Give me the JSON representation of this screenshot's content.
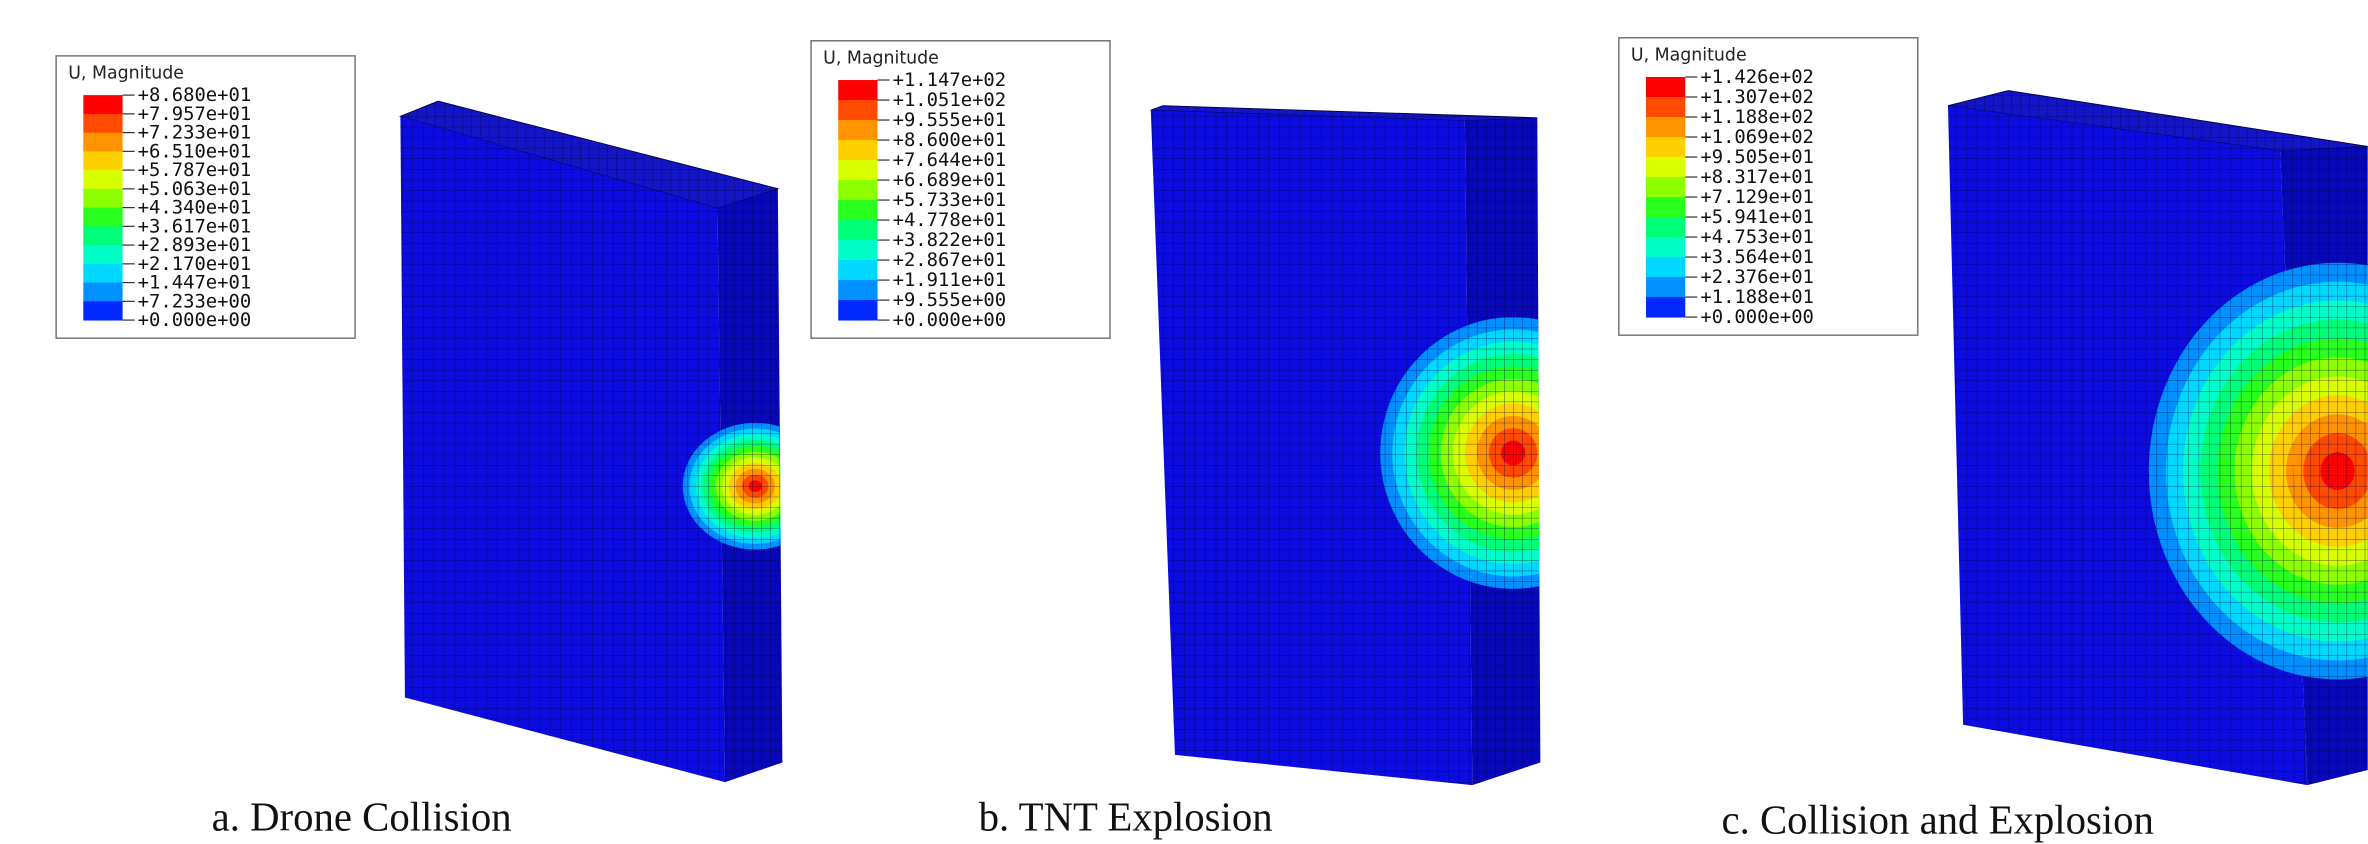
{
  "panels": [
    {
      "legend": {
        "title": "U, Magnitude",
        "labels": [
          "+8.680e+01",
          "+7.957e+01",
          "+7.233e+01",
          "+6.510e+01",
          "+5.787e+01",
          "+5.063e+01",
          "+4.340e+01",
          "+3.617e+01",
          "+2.893e+01",
          "+2.170e+01",
          "+1.447e+01",
          "+7.233e+00",
          "+0.000e+00"
        ]
      },
      "caption": "a. Drone Collision"
    },
    {
      "legend": {
        "title": "U, Magnitude",
        "labels": [
          "+1.147e+02",
          "+1.051e+02",
          "+9.555e+01",
          "+8.600e+01",
          "+7.644e+01",
          "+6.689e+01",
          "+5.733e+01",
          "+4.778e+01",
          "+3.822e+01",
          "+2.867e+01",
          "+1.911e+01",
          "+9.555e+00",
          "+0.000e+00"
        ]
      },
      "caption": "b. TNT Explosion"
    },
    {
      "legend": {
        "title": "U, Magnitude",
        "labels": [
          "+1.426e+02",
          "+1.307e+02",
          "+1.188e+02",
          "+1.069e+02",
          "+9.505e+01",
          "+8.317e+01",
          "+7.129e+01",
          "+5.941e+01",
          "+4.753e+01",
          "+3.564e+01",
          "+2.376e+01",
          "+1.188e+01",
          "+0.000e+00"
        ]
      },
      "caption": "c. Collision and Explosion"
    }
  ]
}
